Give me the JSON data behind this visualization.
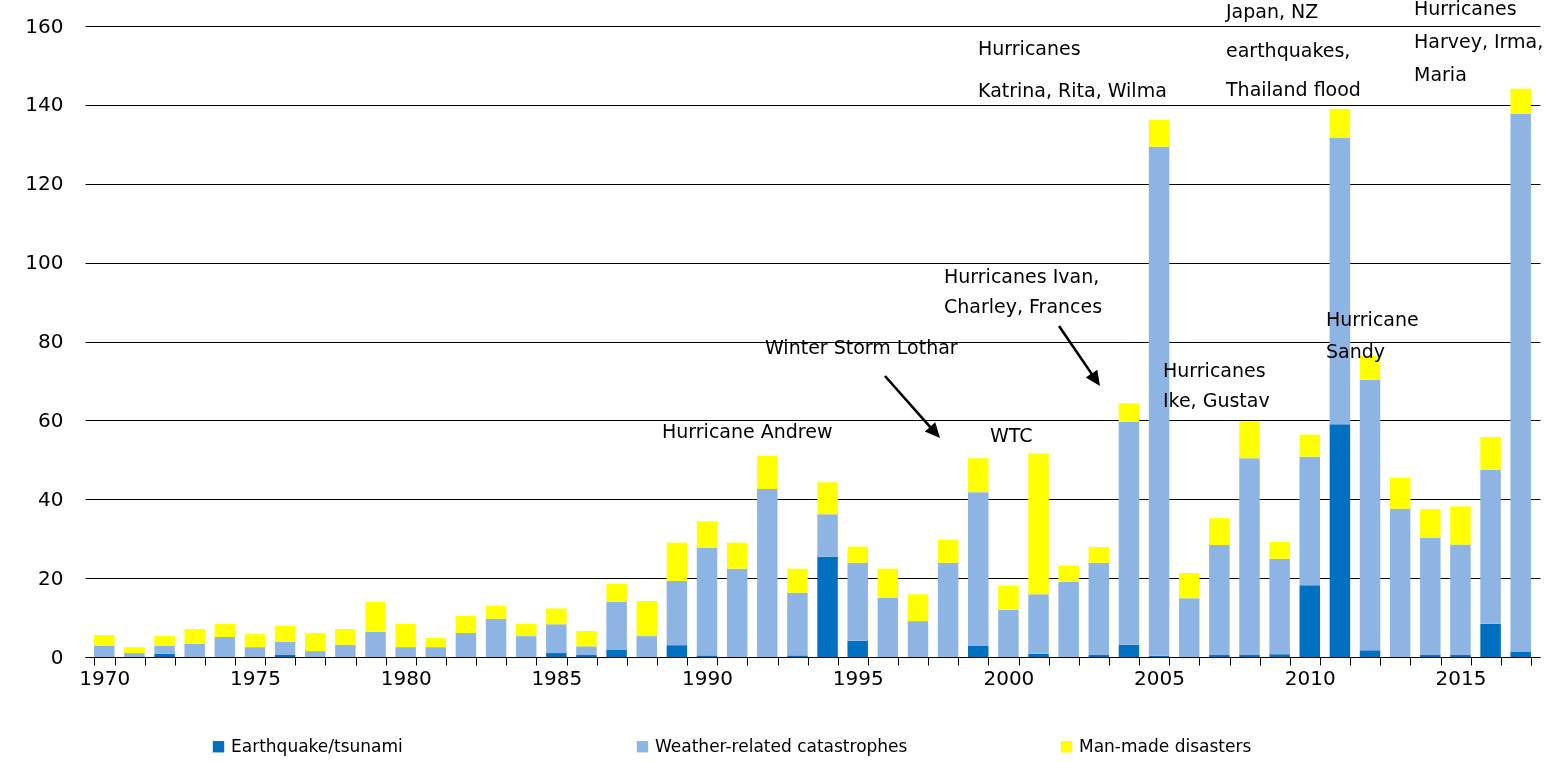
{
  "chart_data": {
    "type": "bar",
    "stacked": true,
    "categories": [
      "1970",
      null,
      null,
      null,
      null,
      "1975",
      null,
      null,
      null,
      null,
      "1980",
      null,
      null,
      null,
      null,
      "1985",
      null,
      null,
      null,
      null,
      "1990",
      null,
      null,
      null,
      null,
      "1995",
      null,
      null,
      null,
      null,
      "2000",
      null,
      null,
      null,
      null,
      "2005",
      null,
      null,
      null,
      null,
      "2010",
      null,
      null,
      null,
      null,
      "2015",
      null,
      null
    ],
    "series": [
      {
        "name": "Earthquake/tsunami",
        "color": "#0070c0",
        "values": [
          null,
          null,
          0.8,
          null,
          null,
          null,
          0.5,
          null,
          null,
          null,
          null,
          null,
          null,
          null,
          null,
          1.0,
          0.5,
          1.8,
          null,
          3.0,
          0.4,
          null,
          null,
          0.4,
          25.4,
          4.1,
          null,
          null,
          null,
          2.9,
          null,
          0.8,
          null,
          0.5,
          3.1,
          0.3,
          null,
          0.5,
          0.5,
          0.7,
          18.2,
          59.0,
          1.7,
          null,
          0.5,
          0.5,
          8.4,
          1.4
        ]
      },
      {
        "name": "Weather-related catastrophes",
        "color": "#8eb4e3",
        "values": [
          2.8,
          1.0,
          2.0,
          3.3,
          5.1,
          2.5,
          3.3,
          1.5,
          3.1,
          6.4,
          2.5,
          2.5,
          6.1,
          9.7,
          5.3,
          7.3,
          2.2,
          12.2,
          5.3,
          16.3,
          27.3,
          22.4,
          42.6,
          15.9,
          10.8,
          19.8,
          15.0,
          9.1,
          23.9,
          38.9,
          12.0,
          15.1,
          19.1,
          23.4,
          56.5,
          129.1,
          14.9,
          27.9,
          49.9,
          24.2,
          32.6,
          72.6,
          68.6,
          37.6,
          29.8,
          28.0,
          39.1,
          136.3
        ]
      },
      {
        "name": "Man-made disasters",
        "color": "#ffff00",
        "values": [
          2.8,
          1.5,
          2.5,
          3.8,
          3.3,
          3.3,
          4.1,
          4.6,
          4.0,
          7.6,
          5.9,
          2.3,
          4.3,
          3.3,
          3.1,
          4.0,
          3.9,
          4.6,
          8.9,
          9.7,
          6.7,
          6.6,
          8.4,
          6.1,
          8.1,
          4.1,
          7.4,
          6.8,
          5.9,
          8.6,
          6.1,
          35.7,
          4.1,
          4.0,
          4.7,
          6.8,
          6.4,
          6.8,
          9.4,
          4.3,
          5.6,
          7.4,
          6.1,
          7.8,
          7.2,
          9.7,
          8.3,
          6.4
        ]
      }
    ],
    "ylim": [
      0,
      160
    ],
    "yticks": [
      0,
      20,
      40,
      60,
      80,
      100,
      120,
      140,
      160
    ],
    "grid": "y",
    "legend": "bottom",
    "annotations": [
      "Hurricane Andrew",
      "Winter Storm Lothar",
      "WTC",
      "Hurricanes Ivan,\nCharley, Frances",
      "Hurricanes\nKatrina, Rita, Wilma",
      "Hurricanes\nIke, Gustav",
      "Japan, NZ\nearthquakes,\nThailand flood",
      "Hurricane\nSandy",
      "Hurricanes\nHarvey, Irma,\nMaria"
    ]
  }
}
